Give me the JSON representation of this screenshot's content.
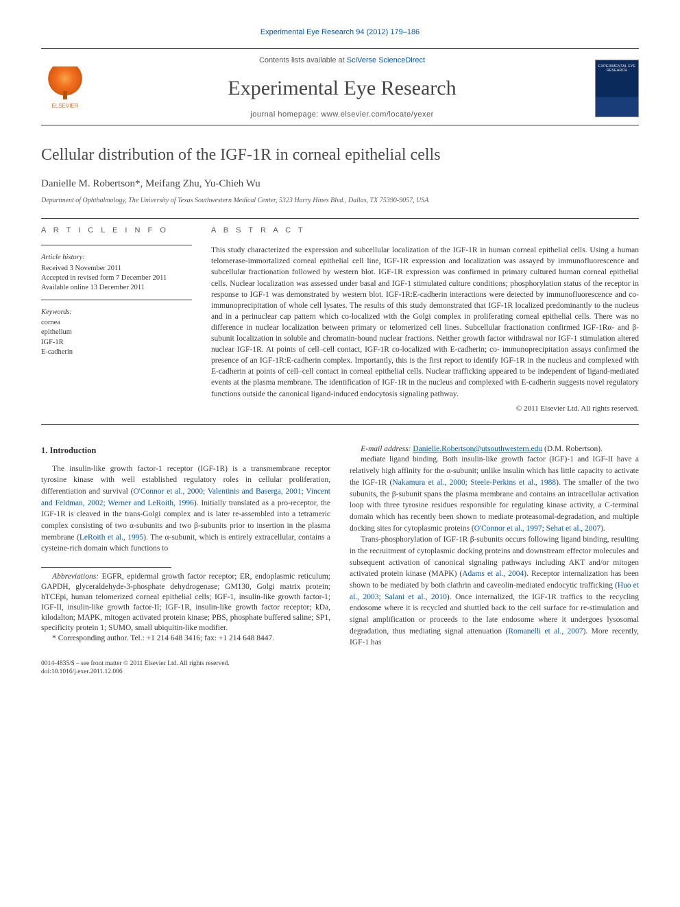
{
  "running_head": "Experimental Eye Research 94 (2012) 179–186",
  "header": {
    "contents_prefix": "Contents lists available at ",
    "contents_link": "SciVerse ScienceDirect",
    "journal_name": "Experimental Eye Research",
    "homepage_prefix": "journal homepage: ",
    "homepage_url": "www.elsevier.com/locate/yexer",
    "publisher_name": "ELSEVIER",
    "cover_label": "EXPERIMENTAL EYE RESEARCH"
  },
  "article": {
    "title": "Cellular distribution of the IGF-1R in corneal epithelial cells",
    "authors": "Danielle M. Robertson*, Meifang Zhu, Yu-Chieh Wu",
    "affiliation": "Department of Ophthalmology, The University of Texas Southwestern Medical Center, 5323 Harry Hines Blvd., Dallas, TX 75390-9057, USA"
  },
  "info": {
    "label": "A R T I C L E   I N F O",
    "history_head": "Article history:",
    "received": "Received 3 November 2011",
    "accepted": "Accepted in revised form 7 December 2011",
    "online": "Available online 13 December 2011",
    "keywords_head": "Keywords:",
    "keywords": [
      "cornea",
      "epithelium",
      "IGF-1R",
      "E-cadherin"
    ]
  },
  "abstract": {
    "label": "A B S T R A C T",
    "text": "This study characterized the expression and subcellular localization of the IGF-1R in human corneal epithelial cells. Using a human telomerase-immortalized corneal epithelial cell line, IGF-1R expression and localization was assayed by immunofluorescence and subcellular fractionation followed by western blot. IGF-1R expression was confirmed in primary cultured human corneal epithelial cells. Nuclear localization was assessed under basal and IGF-1 stimulated culture conditions; phosphorylation status of the receptor in response to IGF-1 was demonstrated by western blot. IGF-1R:E-cadherin interactions were detected by immunofluorescence and co-immunoprecipitation of whole cell lysates. The results of this study demonstrated that IGF-1R localized predominantly to the nucleus and in a perinuclear cap pattern which co-localized with the Golgi complex in proliferating corneal epithelial cells. There was no difference in nuclear localization between primary or telomerized cell lines. Subcellular fractionation confirmed IGF-1Rα- and β-subunit localization in soluble and chromatin-bound nuclear fractions. Neither growth factor withdrawal nor IGF-1 stimulation altered nuclear IGF-1R. At points of cell–cell contact, IGF-1R co-localized with E-cadherin; co- immunoprecipitation assays confirmed the presence of an IGF-1R:E-cadherin complex. Importantly, this is the first report to identify IGF-1R in the nucleus and complexed with E-cadherin at points of cell–cell contact in corneal epithelial cells. Nuclear trafficking appeared to be independent of ligand-mediated events at the plasma membrane. The identification of IGF-1R in the nucleus and complexed with E-cadherin suggests novel regulatory functions outside the canonical ligand-induced endocytosis signaling pathway.",
    "copyright": "© 2011 Elsevier Ltd. All rights reserved."
  },
  "body": {
    "section_heading": "1. Introduction",
    "p1a": "The insulin-like growth factor-1 receptor (IGF-1R) is a transmembrane receptor tyrosine kinase with well established regulatory roles in cellular proliferation, differentiation and survival (",
    "p1_ref1": "O'Connor et al., 2000; Valentinis and Baserga, 2001; Vincent and Feldman, 2002; Werner and LeRoith, 1996",
    "p1b": "). Initially translated as a pro-receptor, the IGF-1R is cleaved in the trans-Golgi complex and is later re-assembled into a tetrameric complex consisting of two α-subunits and two β-subunits prior to insertion in the plasma membrane (",
    "p1_ref2": "LeRoith et al., 1995",
    "p1c": "). The α-subunit, which is entirely extracellular, contains a cysteine-rich domain which functions to",
    "p2a": "mediate ligand binding. Both insulin-like growth factor (IGF)-1 and IGF-II have a relatively high affinity for the α-subunit; unlike insulin which has little capacity to activate the IGF-1R (",
    "p2_ref1": "Nakamura et al., 2000; Steele-Perkins et al., 1988",
    "p2b": "). The smaller of the two subunits, the β-subunit spans the plasma membrane and contains an intracellular activation loop with three tyrosine residues responsible for regulating kinase activity, a C-terminal domain which has recently been shown to mediate proteasomal-degradation, and multiple docking sites for cytoplasmic proteins (",
    "p2_ref2": "O'Connor et al., 1997; Sehat et al., 2007",
    "p2c": ").",
    "p3a": "Trans-phosphorylation of IGF-1R β-subunits occurs following ligand binding, resulting in the recruitment of cytoplasmic docking proteins and downstream effector molecules and subsequent activation of canonical signaling pathways including AKT and/or mitogen activated protein kinase (MAPK) (",
    "p3_ref1": "Adams et al., 2004",
    "p3b": "). Receptor internalization has been shown to be mediated by both clathrin and caveolin-mediated endocytic trafficking (",
    "p3_ref2": "Huo et al., 2003; Salani et al., 2010",
    "p3c": "). Once internalized, the IGF-1R traffics to the recycling endosome where it is recycled and shuttled back to the cell surface for re-stimulation and signal amplification or proceeds to the late endosome where it undergoes lysosomal degradation, thus mediating signal attenuation (",
    "p3_ref3": "Romanelli et al., 2007",
    "p3d": "). More recently, IGF-1 has"
  },
  "footnotes": {
    "abbrev_head": "Abbreviations:",
    "abbrev_body": " EGFR, epidermal growth factor receptor; ER, endoplasmic reticulum; GAPDH, glyceraldehyde-3-phosphate dehydrogenase; GM130, Golgi matrix protein; hTCEpi, human telomerized corneal epithelial cells; IGF-1, insulin-like growth factor-1; IGF-II, insulin-like growth factor-II; IGF-1R, insulin-like growth factor receptor; kDa, kilodalton; MAPK, mitogen activated protein kinase; PBS, phosphate buffered saline; SP1, specificity protein 1; SUMO, small ubiquitin-like modifier.",
    "corresponding": "* Corresponding author. Tel.: +1 214 648 3416; fax: +1 214 648 8447.",
    "email_label": "E-mail address:",
    "email": "Danielle.Robertson@utsouthwestern.edu",
    "email_suffix": " (D.M. Robertson)."
  },
  "footer": {
    "issn_line": "0014-4835/$ – see front matter © 2011 Elsevier Ltd. All rights reserved.",
    "doi_line": "doi:10.1016/j.exer.2011.12.006"
  },
  "colors": {
    "link": "#0056b3",
    "text": "#3a3a3a",
    "elsevier_orange": "#f36f21",
    "cover_bg": "#0a2a5c"
  }
}
